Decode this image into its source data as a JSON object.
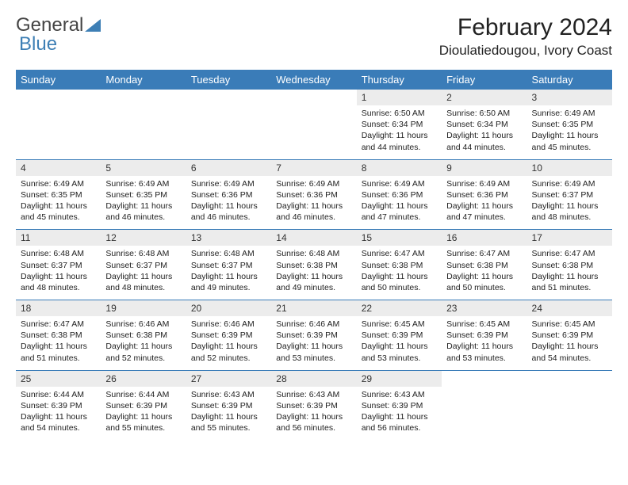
{
  "logo": {
    "text1": "General",
    "text2": "Blue"
  },
  "header": {
    "month_title": "February 2024",
    "location": "Dioulatiedougou, Ivory Coast"
  },
  "colors": {
    "header_bg": "#3a7cb8",
    "header_text": "#ffffff",
    "daynum_bg": "#ececec",
    "text": "#222222",
    "rule": "#3a7cb8",
    "logo_blue": "#3e7fb5"
  },
  "day_labels": [
    "Sunday",
    "Monday",
    "Tuesday",
    "Wednesday",
    "Thursday",
    "Friday",
    "Saturday"
  ],
  "weeks": [
    [
      {
        "empty": true
      },
      {
        "empty": true
      },
      {
        "empty": true
      },
      {
        "empty": true
      },
      {
        "num": "1",
        "sunrise": "Sunrise: 6:50 AM",
        "sunset": "Sunset: 6:34 PM",
        "daylight": "Daylight: 11 hours and 44 minutes."
      },
      {
        "num": "2",
        "sunrise": "Sunrise: 6:50 AM",
        "sunset": "Sunset: 6:34 PM",
        "daylight": "Daylight: 11 hours and 44 minutes."
      },
      {
        "num": "3",
        "sunrise": "Sunrise: 6:49 AM",
        "sunset": "Sunset: 6:35 PM",
        "daylight": "Daylight: 11 hours and 45 minutes."
      }
    ],
    [
      {
        "num": "4",
        "sunrise": "Sunrise: 6:49 AM",
        "sunset": "Sunset: 6:35 PM",
        "daylight": "Daylight: 11 hours and 45 minutes."
      },
      {
        "num": "5",
        "sunrise": "Sunrise: 6:49 AM",
        "sunset": "Sunset: 6:35 PM",
        "daylight": "Daylight: 11 hours and 46 minutes."
      },
      {
        "num": "6",
        "sunrise": "Sunrise: 6:49 AM",
        "sunset": "Sunset: 6:36 PM",
        "daylight": "Daylight: 11 hours and 46 minutes."
      },
      {
        "num": "7",
        "sunrise": "Sunrise: 6:49 AM",
        "sunset": "Sunset: 6:36 PM",
        "daylight": "Daylight: 11 hours and 46 minutes."
      },
      {
        "num": "8",
        "sunrise": "Sunrise: 6:49 AM",
        "sunset": "Sunset: 6:36 PM",
        "daylight": "Daylight: 11 hours and 47 minutes."
      },
      {
        "num": "9",
        "sunrise": "Sunrise: 6:49 AM",
        "sunset": "Sunset: 6:36 PM",
        "daylight": "Daylight: 11 hours and 47 minutes."
      },
      {
        "num": "10",
        "sunrise": "Sunrise: 6:49 AM",
        "sunset": "Sunset: 6:37 PM",
        "daylight": "Daylight: 11 hours and 48 minutes."
      }
    ],
    [
      {
        "num": "11",
        "sunrise": "Sunrise: 6:48 AM",
        "sunset": "Sunset: 6:37 PM",
        "daylight": "Daylight: 11 hours and 48 minutes."
      },
      {
        "num": "12",
        "sunrise": "Sunrise: 6:48 AM",
        "sunset": "Sunset: 6:37 PM",
        "daylight": "Daylight: 11 hours and 48 minutes."
      },
      {
        "num": "13",
        "sunrise": "Sunrise: 6:48 AM",
        "sunset": "Sunset: 6:37 PM",
        "daylight": "Daylight: 11 hours and 49 minutes."
      },
      {
        "num": "14",
        "sunrise": "Sunrise: 6:48 AM",
        "sunset": "Sunset: 6:38 PM",
        "daylight": "Daylight: 11 hours and 49 minutes."
      },
      {
        "num": "15",
        "sunrise": "Sunrise: 6:47 AM",
        "sunset": "Sunset: 6:38 PM",
        "daylight": "Daylight: 11 hours and 50 minutes."
      },
      {
        "num": "16",
        "sunrise": "Sunrise: 6:47 AM",
        "sunset": "Sunset: 6:38 PM",
        "daylight": "Daylight: 11 hours and 50 minutes."
      },
      {
        "num": "17",
        "sunrise": "Sunrise: 6:47 AM",
        "sunset": "Sunset: 6:38 PM",
        "daylight": "Daylight: 11 hours and 51 minutes."
      }
    ],
    [
      {
        "num": "18",
        "sunrise": "Sunrise: 6:47 AM",
        "sunset": "Sunset: 6:38 PM",
        "daylight": "Daylight: 11 hours and 51 minutes."
      },
      {
        "num": "19",
        "sunrise": "Sunrise: 6:46 AM",
        "sunset": "Sunset: 6:38 PM",
        "daylight": "Daylight: 11 hours and 52 minutes."
      },
      {
        "num": "20",
        "sunrise": "Sunrise: 6:46 AM",
        "sunset": "Sunset: 6:39 PM",
        "daylight": "Daylight: 11 hours and 52 minutes."
      },
      {
        "num": "21",
        "sunrise": "Sunrise: 6:46 AM",
        "sunset": "Sunset: 6:39 PM",
        "daylight": "Daylight: 11 hours and 53 minutes."
      },
      {
        "num": "22",
        "sunrise": "Sunrise: 6:45 AM",
        "sunset": "Sunset: 6:39 PM",
        "daylight": "Daylight: 11 hours and 53 minutes."
      },
      {
        "num": "23",
        "sunrise": "Sunrise: 6:45 AM",
        "sunset": "Sunset: 6:39 PM",
        "daylight": "Daylight: 11 hours and 53 minutes."
      },
      {
        "num": "24",
        "sunrise": "Sunrise: 6:45 AM",
        "sunset": "Sunset: 6:39 PM",
        "daylight": "Daylight: 11 hours and 54 minutes."
      }
    ],
    [
      {
        "num": "25",
        "sunrise": "Sunrise: 6:44 AM",
        "sunset": "Sunset: 6:39 PM",
        "daylight": "Daylight: 11 hours and 54 minutes."
      },
      {
        "num": "26",
        "sunrise": "Sunrise: 6:44 AM",
        "sunset": "Sunset: 6:39 PM",
        "daylight": "Daylight: 11 hours and 55 minutes."
      },
      {
        "num": "27",
        "sunrise": "Sunrise: 6:43 AM",
        "sunset": "Sunset: 6:39 PM",
        "daylight": "Daylight: 11 hours and 55 minutes."
      },
      {
        "num": "28",
        "sunrise": "Sunrise: 6:43 AM",
        "sunset": "Sunset: 6:39 PM",
        "daylight": "Daylight: 11 hours and 56 minutes."
      },
      {
        "num": "29",
        "sunrise": "Sunrise: 6:43 AM",
        "sunset": "Sunset: 6:39 PM",
        "daylight": "Daylight: 11 hours and 56 minutes."
      },
      {
        "empty": true
      },
      {
        "empty": true
      }
    ]
  ]
}
